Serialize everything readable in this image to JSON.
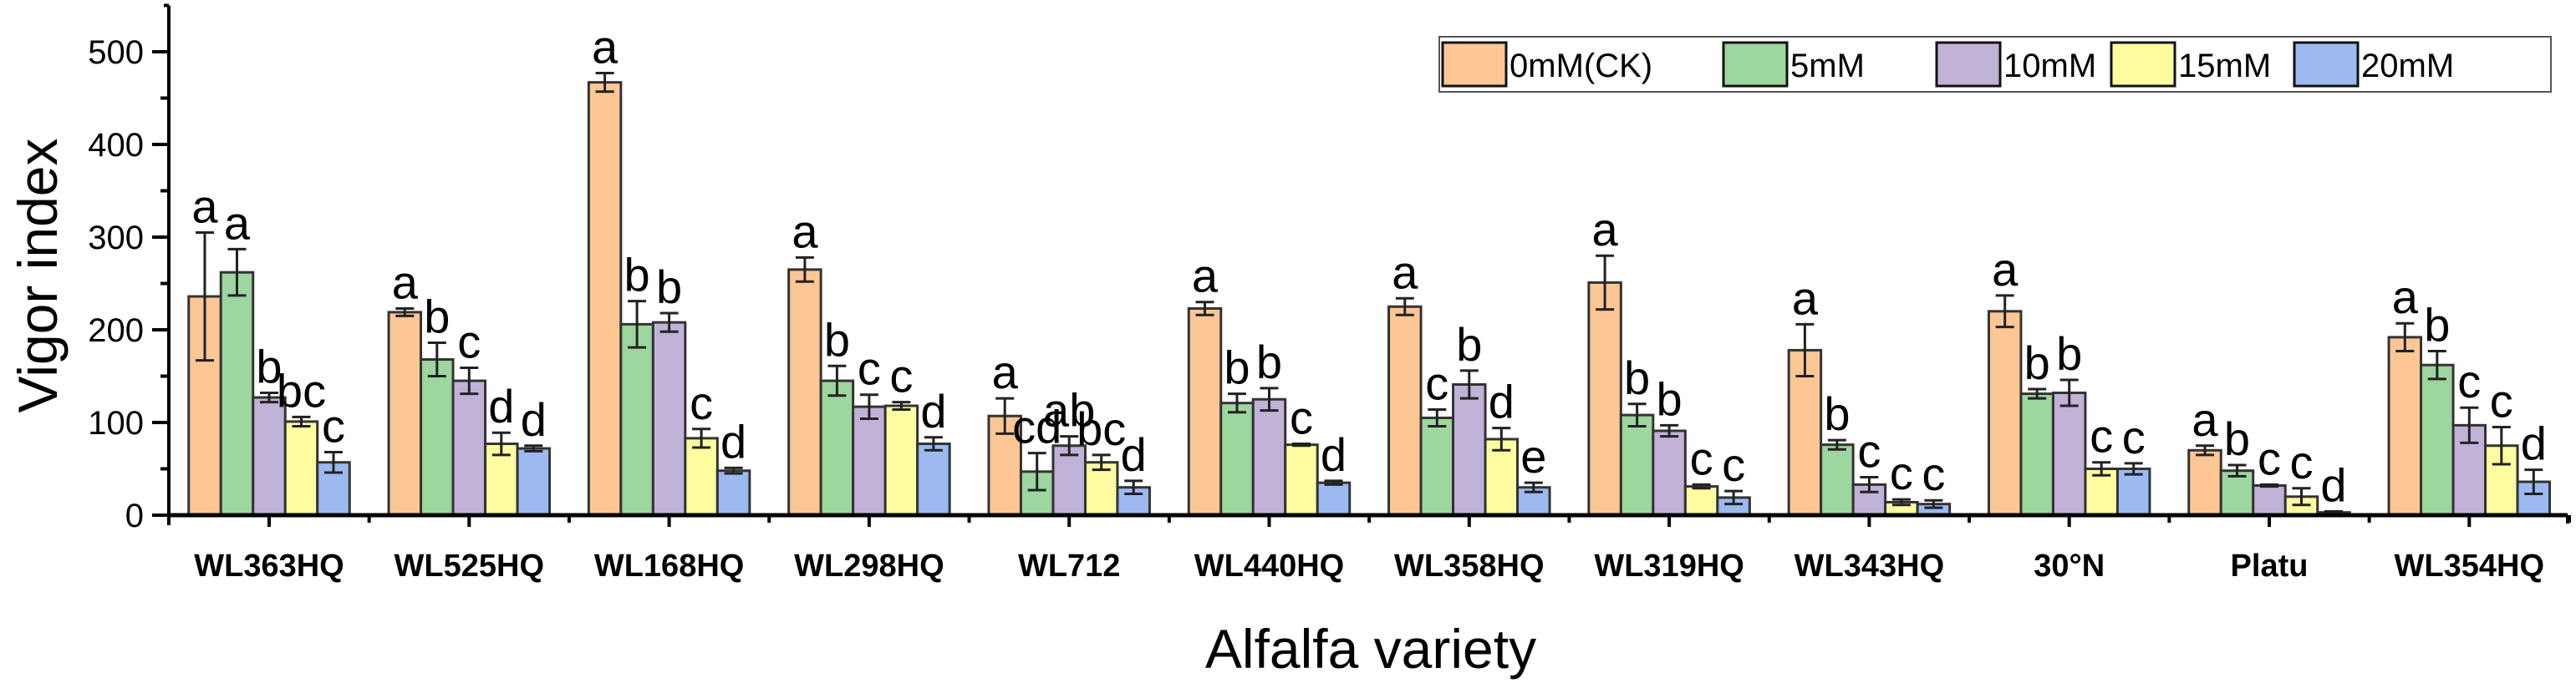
{
  "chart_data": {
    "type": "bar",
    "title": "",
    "xlabel": "Alfalfa variety",
    "ylabel": "Vigor index",
    "ylim": [
      0,
      550
    ],
    "yticks": [
      0,
      100,
      200,
      300,
      400,
      500
    ],
    "grid": false,
    "legend_position": "top-right",
    "categories": [
      "WL363HQ",
      "WL525HQ",
      "WL168HQ",
      "WL298HQ",
      "WL712",
      "WL440HQ",
      "WL358HQ",
      "WL319HQ",
      "WL343HQ",
      "30°N",
      "Platu",
      "WL354HQ"
    ],
    "series": [
      {
        "name": "0mM(CK)",
        "color": "#FCC795",
        "values": [
          236,
          219,
          467,
          265,
          107,
          223,
          225,
          251,
          178,
          220,
          70,
          192
        ],
        "errors": [
          69,
          4,
          10,
          13,
          19,
          7,
          9,
          29,
          28,
          17,
          5,
          15
        ],
        "labels": [
          "a",
          "a",
          "a",
          "a",
          "a",
          "a",
          "a",
          "a",
          "a",
          "a",
          "a",
          "a"
        ]
      },
      {
        "name": "5mM",
        "color": "#9DD69E",
        "values": [
          262,
          168,
          206,
          145,
          47,
          121,
          105,
          108,
          76,
          131,
          48,
          162
        ],
        "errors": [
          25,
          18,
          25,
          16,
          20,
          10,
          9,
          12,
          5,
          5,
          6,
          15
        ],
        "labels": [
          "a",
          "b",
          "b",
          "b",
          "cd",
          "b",
          "c",
          "b",
          "b",
          "b",
          "b",
          "b"
        ]
      },
      {
        "name": "10mM",
        "color": "#C1B2D7",
        "values": [
          127,
          145,
          208,
          117,
          75,
          125,
          141,
          91,
          33,
          132,
          32,
          97
        ],
        "errors": [
          5,
          14,
          10,
          13,
          10,
          12,
          15,
          6,
          8,
          14,
          1,
          19
        ],
        "labels": [
          "b",
          "c",
          "b",
          "c",
          "ab",
          "b",
          "b",
          "b",
          "c",
          "b",
          "c",
          "c"
        ]
      },
      {
        "name": "15mM",
        "color": "#FFFCA0",
        "values": [
          101,
          77,
          83,
          118,
          57,
          76,
          82,
          31,
          14,
          50,
          20,
          75
        ],
        "errors": [
          5,
          12,
          10,
          4,
          8,
          1,
          12,
          2,
          3,
          7,
          9,
          20
        ],
        "labels": [
          "bc",
          "d",
          "c",
          "c",
          "bc",
          "c",
          "d",
          "c",
          "c",
          "c",
          "c",
          "c"
        ]
      },
      {
        "name": "20mM",
        "color": "#9CBAF0",
        "values": [
          57,
          72,
          48,
          77,
          30,
          35,
          30,
          19,
          12,
          50,
          3,
          36
        ],
        "errors": [
          11,
          3,
          3,
          7,
          7,
          2,
          5,
          7,
          4,
          6,
          1,
          13
        ],
        "labels": [
          "c",
          "d",
          "d",
          "d",
          "d",
          "d",
          "e",
          "c",
          "c",
          "c",
          "d",
          "d"
        ]
      }
    ]
  }
}
